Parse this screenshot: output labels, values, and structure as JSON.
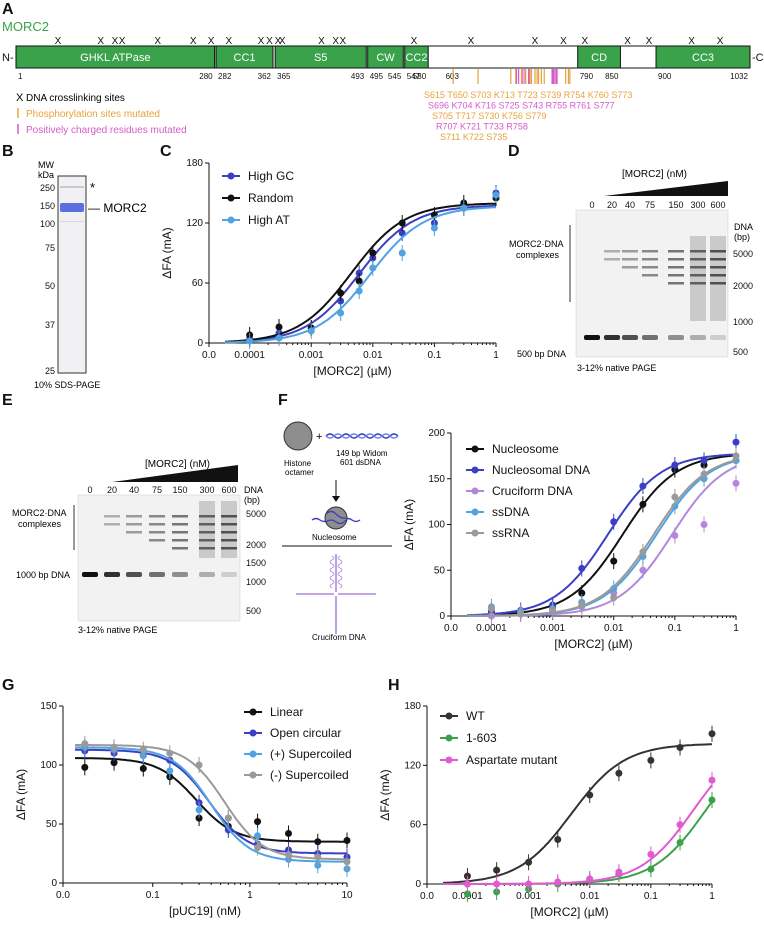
{
  "panel_a": {
    "label": "A",
    "protein": "MORC2",
    "n_term": "N-",
    "c_term": "-C",
    "domains": [
      {
        "name": "GHKL ATPase",
        "start": 1,
        "end": 280,
        "start_label": "1",
        "end_label": "280"
      },
      {
        "name": "CC1",
        "start": 282,
        "end": 362,
        "start_label": "282",
        "end_label": "362"
      },
      {
        "name": "S5",
        "start": 365,
        "end": 493,
        "start_label": "365",
        "end_label": "493"
      },
      {
        "name": "CW",
        "start": 495,
        "end": 545,
        "start_label": "495",
        "end_label": "545"
      },
      {
        "name": "CC2",
        "start": 547,
        "end": 580,
        "start_label": "547",
        "end_label": "580"
      },
      {
        "name": "CD",
        "start": 790,
        "end": 850,
        "start_label": "790",
        "end_label": "850"
      },
      {
        "name": "CC3",
        "start": 900,
        "end": 1032,
        "start_label": "900",
        "end_label": "1032"
      }
    ],
    "linker_start_label": "603",
    "phospho_rows": [
      "S615 T650     S703   K713   T723   S739  R754  K760 S773",
      "S696   K704 K716   S725 S743   R755  R761   S777",
      "S705 T717   S730                 K756       S779",
      "R707 K721   T733        R758",
      "S711 K722   S735"
    ],
    "legend": [
      {
        "mark": "X",
        "text": "DNA crosslinking sites"
      },
      {
        "mark": "|",
        "text": "Phosphorylation sites mutated",
        "color": "#e8a33a"
      },
      {
        "mark": "|",
        "text": "Positively charged residues mutated",
        "color": "#d65bc7"
      }
    ]
  },
  "panel_b": {
    "label": "B",
    "mw_header": "MW\nkDa",
    "mw_header_1": "MW",
    "mw_header_2": "kDa",
    "markers": [
      "250",
      "150",
      "100",
      "75",
      "50",
      "37",
      "25"
    ],
    "star": "*",
    "band_label": "— MORC2",
    "caption": "10% SDS-PAGE"
  },
  "panel_c": {
    "label": "C",
    "chart_data": {
      "type": "line",
      "xscale": "log",
      "xlabel": "[MORC2] (µM)",
      "ylabel": "ΔFA (mA)",
      "xticks": [
        "0.0",
        "0.0001",
        "0.001",
        "0.01",
        "0.1",
        "1"
      ],
      "yticks": [
        "0",
        "60",
        "120",
        "180"
      ],
      "ylim": [
        0,
        180
      ],
      "series": [
        {
          "name": "High GC",
          "color": "#3b3fc4",
          "x": [
            0.0001,
            0.0003,
            0.001,
            0.003,
            0.006,
            0.01,
            0.03,
            0.1,
            0.3,
            1
          ],
          "y": [
            4,
            10,
            15,
            42,
            70,
            85,
            110,
            120,
            135,
            150
          ],
          "kd": 0.006,
          "max": 138
        },
        {
          "name": "Random",
          "color": "#111111",
          "x": [
            0.0001,
            0.0003,
            0.001,
            0.003,
            0.006,
            0.01,
            0.03,
            0.1,
            0.3,
            1
          ],
          "y": [
            8,
            16,
            15,
            50,
            62,
            90,
            120,
            128,
            140,
            145
          ],
          "kd": 0.0045,
          "max": 140
        },
        {
          "name": "High AT",
          "color": "#4fa3e0",
          "x": [
            0.0001,
            0.0003,
            0.001,
            0.003,
            0.006,
            0.01,
            0.03,
            0.1,
            0.3,
            1
          ],
          "y": [
            2,
            5,
            12,
            30,
            52,
            75,
            90,
            115,
            135,
            148
          ],
          "kd": 0.009,
          "max": 137
        }
      ]
    }
  },
  "panel_d": {
    "label": "D",
    "title": "[MORC2] (nM)",
    "lanes": [
      "0",
      "20",
      "40",
      "75",
      "150",
      "300",
      "600"
    ],
    "dna_axis": [
      "DNA",
      "(bp)"
    ],
    "ladder": [
      "5000",
      "2000",
      "1000",
      "500"
    ],
    "complex_label": [
      "MORC2·DNA",
      "complexes"
    ],
    "free_label": "500 bp DNA",
    "caption": "3-12% native PAGE"
  },
  "panel_e": {
    "label": "E",
    "title": "[MORC2] (nM)",
    "lanes": [
      "0",
      "20",
      "40",
      "75",
      "150",
      "300",
      "600"
    ],
    "dna_axis": [
      "DNA",
      "(bp)"
    ],
    "ladder": [
      "5000",
      "2000",
      "1500",
      "1000",
      "500"
    ],
    "complex_label": [
      "MORC2·DNA",
      "complexes"
    ],
    "free_label": "1000 bp DNA",
    "caption": "3-12% native PAGE"
  },
  "panel_f": {
    "label": "F",
    "schematic": {
      "octamer": [
        "Histone",
        "octamer"
      ],
      "plus": "+",
      "dna": [
        "149 bp Widom",
        "601 dsDNA"
      ],
      "nucleosome": "Nucleosome",
      "cruciform": "Cruciform DNA"
    },
    "chart_data": {
      "type": "line",
      "xscale": "log",
      "xlabel": "[MORC2] (µM)",
      "ylabel": "ΔFA (mA)",
      "xticks": [
        "0.0",
        "0.0001",
        "0.001",
        "0.01",
        "0.1",
        "1"
      ],
      "yticks": [
        "0",
        "50",
        "100",
        "150",
        "200"
      ],
      "ylim": [
        0,
        200
      ],
      "series": [
        {
          "name": "Nucleosome",
          "color": "#111111",
          "x": [
            0.0001,
            0.0003,
            0.001,
            0.003,
            0.01,
            0.03,
            0.1,
            0.3,
            1
          ],
          "y": [
            5,
            4,
            10,
            25,
            60,
            122,
            160,
            165,
            170
          ],
          "kd": 0.014,
          "max": 178
        },
        {
          "name": "Nucleosomal DNA",
          "color": "#3b3fc4",
          "x": [
            0.0001,
            0.0003,
            0.001,
            0.003,
            0.01,
            0.03,
            0.1,
            0.3,
            1
          ],
          "y": [
            5,
            6,
            12,
            52,
            103,
            142,
            165,
            170,
            190
          ],
          "kd": 0.008,
          "max": 178
        },
        {
          "name": "Cruciform DNA",
          "color": "#b189dc",
          "x": [
            0.0001,
            0.0003,
            0.001,
            0.003,
            0.01,
            0.03,
            0.1,
            0.3,
            1
          ],
          "y": [
            0,
            2,
            5,
            10,
            25,
            50,
            88,
            100,
            145
          ],
          "kd": 0.09,
          "max": 178
        },
        {
          "name": "ssDNA",
          "color": "#4fa3e0",
          "x": [
            0.0001,
            0.0003,
            0.001,
            0.003,
            0.01,
            0.03,
            0.1,
            0.3,
            1
          ],
          "y": [
            10,
            5,
            8,
            15,
            30,
            65,
            120,
            150,
            170
          ],
          "kd": 0.05,
          "max": 178
        },
        {
          "name": "ssRNA",
          "color": "#9a9a9a",
          "x": [
            0.0001,
            0.0003,
            0.001,
            0.003,
            0.01,
            0.03,
            0.1,
            0.3,
            1
          ],
          "y": [
            8,
            3,
            6,
            12,
            20,
            70,
            130,
            155,
            175
          ],
          "kd": 0.045,
          "max": 178
        }
      ]
    }
  },
  "panel_g": {
    "label": "G",
    "chart_data": {
      "type": "line",
      "xscale": "log",
      "xlabel": "[pUC19] (nM)",
      "ylabel": "ΔFA (mA)",
      "xticks": [
        "0.0",
        "0.1",
        "1",
        "10"
      ],
      "yticks": [
        "0",
        "50",
        "100",
        "150"
      ],
      "ylim": [
        0,
        150
      ],
      "series": [
        {
          "name": "Linear",
          "color": "#111111",
          "x": [
            0.02,
            0.04,
            0.08,
            0.15,
            0.3,
            0.6,
            1.2,
            2.5,
            5,
            10
          ],
          "y": [
            98,
            102,
            97,
            90,
            55,
            48,
            52,
            42,
            35,
            36
          ],
          "top": 106,
          "bottom": 35,
          "ic": 0.28
        },
        {
          "name": "Open circular",
          "color": "#3b3fc4",
          "x": [
            0.02,
            0.04,
            0.08,
            0.15,
            0.3,
            0.6,
            1.2,
            2.5,
            5,
            10
          ],
          "y": [
            112,
            110,
            108,
            104,
            68,
            45,
            33,
            28,
            25,
            22
          ],
          "top": 113,
          "bottom": 25,
          "ic": 0.38
        },
        {
          "name": "(+) Supercoiled",
          "color": "#4fa3e0",
          "x": [
            0.02,
            0.04,
            0.08,
            0.15,
            0.3,
            0.6,
            1.2,
            2.5,
            5,
            10
          ],
          "y": [
            115,
            113,
            108,
            95,
            62,
            55,
            40,
            20,
            15,
            12
          ],
          "top": 115,
          "bottom": 18,
          "ic": 0.4
        },
        {
          "name": "(-) Supercoiled",
          "color": "#9a9a9a",
          "x": [
            0.02,
            0.04,
            0.08,
            0.15,
            0.3,
            0.6,
            1.2,
            2.5,
            5,
            10
          ],
          "y": [
            118,
            115,
            113,
            110,
            100,
            55,
            30,
            24,
            22,
            18
          ],
          "top": 117,
          "bottom": 20,
          "ic": 0.55
        }
      ]
    }
  },
  "panel_h": {
    "label": "H",
    "chart_data": {
      "type": "line",
      "xscale": "log",
      "xlabel": "[MORC2] (µM)",
      "ylabel": "ΔFA (mA)",
      "xticks": [
        "0.0",
        "0.0001",
        "0.001",
        "0.01",
        "0.1",
        "1"
      ],
      "yticks": [
        "0",
        "60",
        "120",
        "180"
      ],
      "ylim": [
        0,
        180
      ],
      "series": [
        {
          "name": "WT",
          "color": "#333333",
          "x": [
            0.0001,
            0.0003,
            0.001,
            0.003,
            0.01,
            0.03,
            0.1,
            0.3,
            1
          ],
          "y": [
            8,
            14,
            22,
            45,
            90,
            112,
            125,
            138,
            152
          ],
          "kd": 0.005,
          "max": 142
        },
        {
          "name": "1-603",
          "color": "#3aa24a",
          "x": [
            0.0001,
            0.0003,
            0.001,
            0.003,
            0.01,
            0.03,
            0.1,
            0.3,
            1
          ],
          "y": [
            -10,
            -8,
            -5,
            0,
            5,
            10,
            15,
            42,
            85
          ],
          "kd": 0.8,
          "max": 150
        },
        {
          "name": "Aspartate mutant",
          "color": "#e05ad0",
          "x": [
            0.0001,
            0.0003,
            0.001,
            0.003,
            0.01,
            0.03,
            0.1,
            0.3,
            1
          ],
          "y": [
            0,
            0,
            0,
            2,
            5,
            12,
            30,
            60,
            105
          ],
          "kd": 0.5,
          "max": 150
        }
      ]
    }
  }
}
